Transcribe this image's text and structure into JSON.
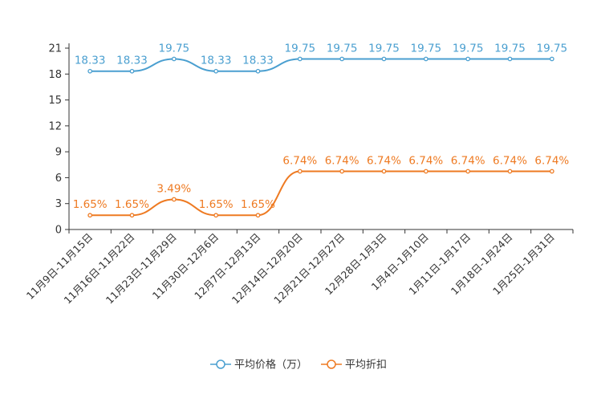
{
  "chart_data": {
    "type": "line",
    "title": "",
    "xlabel": "",
    "ylabel": "",
    "ylim": [
      0,
      21
    ],
    "yticks": [
      0,
      3,
      6,
      9,
      12,
      15,
      18,
      21
    ],
    "categories": [
      "11月9日-11月15日",
      "11月16日-11月22日",
      "11月23日-11月29日",
      "11月30日-12月6日",
      "12月7日-12月13日",
      "12月14日-12月20日",
      "12月21日-12月27日",
      "12月28日-1月3日",
      "1月4日-1月10日",
      "1月11日-1月17日",
      "1月18日-1月24日",
      "1月25日-1月31日"
    ],
    "series": [
      {
        "name": "平均价格（万）",
        "color": "#4a9fd0",
        "values": [
          18.33,
          18.33,
          19.75,
          18.33,
          18.33,
          19.75,
          19.75,
          19.75,
          19.75,
          19.75,
          19.75,
          19.75
        ],
        "labels": [
          "18.33",
          "18.33",
          "19.75",
          "18.33",
          "18.33",
          "19.75",
          "19.75",
          "19.75",
          "19.75",
          "19.75",
          "19.75",
          "19.75"
        ]
      },
      {
        "name": "平均折扣",
        "color": "#ee7a22",
        "values": [
          1.65,
          1.65,
          3.49,
          1.65,
          1.65,
          6.74,
          6.74,
          6.74,
          6.74,
          6.74,
          6.74,
          6.74
        ],
        "labels": [
          "1.65%",
          "1.65%",
          "3.49%",
          "1.65%",
          "1.65%",
          "6.74%",
          "6.74%",
          "6.74%",
          "6.74%",
          "6.74%",
          "6.74%",
          "6.74%"
        ]
      }
    ],
    "legend": "bottom-center",
    "grid": false
  }
}
